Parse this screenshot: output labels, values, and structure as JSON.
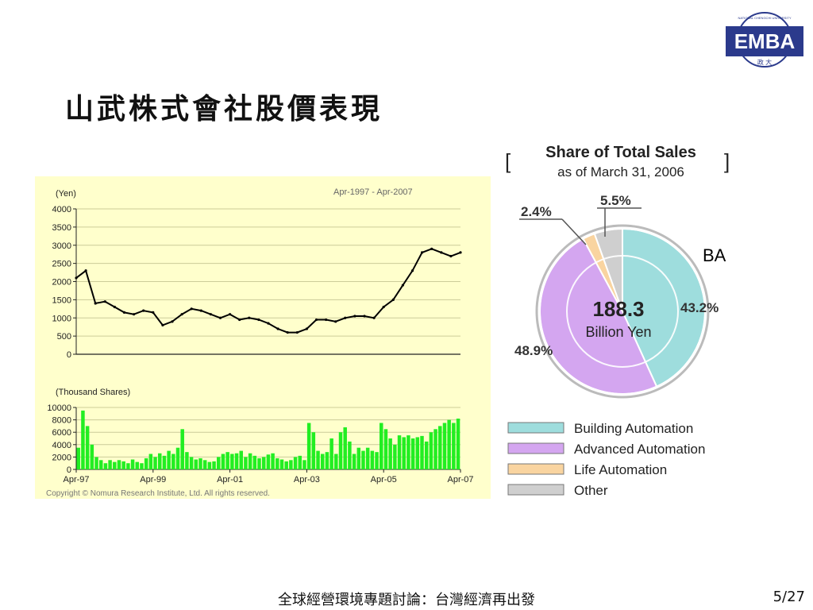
{
  "logo": {
    "text": "EMBA",
    "ring": "NATIONAL CHENGCHI UNIVERSITY",
    "sub": "政 大",
    "color": "#2b3a8c"
  },
  "slide": {
    "title": "山武株式會社股價表現",
    "footer": "全球經營環境專題討論：台灣經濟再出發",
    "page": "5/27",
    "annotation": "BA"
  },
  "chart_data": [
    {
      "type": "line",
      "ylabel": "(Yen)",
      "period": "Apr-1997 - Apr-2007",
      "ylim": [
        0,
        4000
      ],
      "yticks": [
        "4000",
        "3500",
        "3000",
        "2500",
        "2000",
        "1500",
        "1000",
        "500",
        "0"
      ],
      "x": [
        1997.25,
        1997.5,
        1997.75,
        1998.0,
        1998.25,
        1998.5,
        1998.75,
        1999.0,
        1999.25,
        1999.5,
        1999.75,
        2000.0,
        2000.25,
        2000.5,
        2000.75,
        2001.0,
        2001.25,
        2001.5,
        2001.75,
        2002.0,
        2002.25,
        2002.5,
        2002.75,
        2003.0,
        2003.25,
        2003.5,
        2003.75,
        2004.0,
        2004.25,
        2004.5,
        2004.75,
        2005.0,
        2005.25,
        2005.5,
        2005.75,
        2006.0,
        2006.25,
        2006.5,
        2006.75,
        2007.0,
        2007.25
      ],
      "values": [
        2100,
        2300,
        1400,
        1450,
        1300,
        1150,
        1100,
        1200,
        1150,
        800,
        900,
        1100,
        1250,
        1200,
        1100,
        1000,
        1100,
        950,
        1000,
        950,
        850,
        700,
        600,
        600,
        700,
        950,
        950,
        900,
        1000,
        1050,
        1050,
        1000,
        1300,
        1500,
        1900,
        2300,
        2800,
        2900,
        2800,
        2700,
        2800
      ]
    },
    {
      "type": "bar",
      "ylabel": "(Thousand Shares)",
      "ylim": [
        0,
        10000
      ],
      "yticks": [
        "10000",
        "8000",
        "6000",
        "4000",
        "2000",
        "0"
      ],
      "xticks": [
        "Apr-97",
        "Apr-99",
        "Apr-01",
        "Apr-03",
        "Apr-05",
        "Apr-07"
      ],
      "color": "#22ee22",
      "values": [
        3500,
        9500,
        7000,
        4000,
        2000,
        1500,
        1000,
        1500,
        1200,
        1500,
        1300,
        1000,
        1600,
        1200,
        1000,
        1800,
        2500,
        2000,
        2600,
        2200,
        3000,
        2500,
        3500,
        6500,
        2800,
        2000,
        1600,
        1800,
        1500,
        1200,
        1300,
        2000,
        2500,
        2800,
        2500,
        2600,
        3000,
        2000,
        2600,
        2200,
        1800,
        2000,
        2400,
        2600,
        1800,
        1600,
        1300,
        1500,
        2000,
        2200,
        1500,
        7500,
        6000,
        3000,
        2500,
        2800,
        5000,
        2500,
        6000,
        6800,
        4500,
        2500,
        3500,
        3000,
        3500,
        3000,
        2800,
        7500,
        6500,
        5000,
        4000,
        5500,
        5200,
        5500,
        5000,
        5200,
        5400,
        4500,
        6000,
        6500,
        7000,
        7500,
        8000,
        7500,
        8200
      ]
    },
    {
      "type": "pie",
      "title": "Share of Total Sales",
      "subtitle": "as of March 31, 2006",
      "center_value": "188.3",
      "center_unit": "Billion Yen",
      "slices": [
        {
          "name": "Building Automation",
          "value": 43.2,
          "label": "43.2%",
          "color": "#9edddd"
        },
        {
          "name": "Advanced Automation",
          "value": 48.9,
          "label": "48.9%",
          "color": "#d4a6f0"
        },
        {
          "name": "Life Automation",
          "value": 2.4,
          "label": "2.4%",
          "color": "#f9d4a0"
        },
        {
          "name": "Other",
          "value": 5.5,
          "label": "5.5%",
          "color": "#cfcfcf"
        }
      ]
    }
  ],
  "copyright": "Copyright © Nomura Research Institute, Ltd. All rights reserved."
}
